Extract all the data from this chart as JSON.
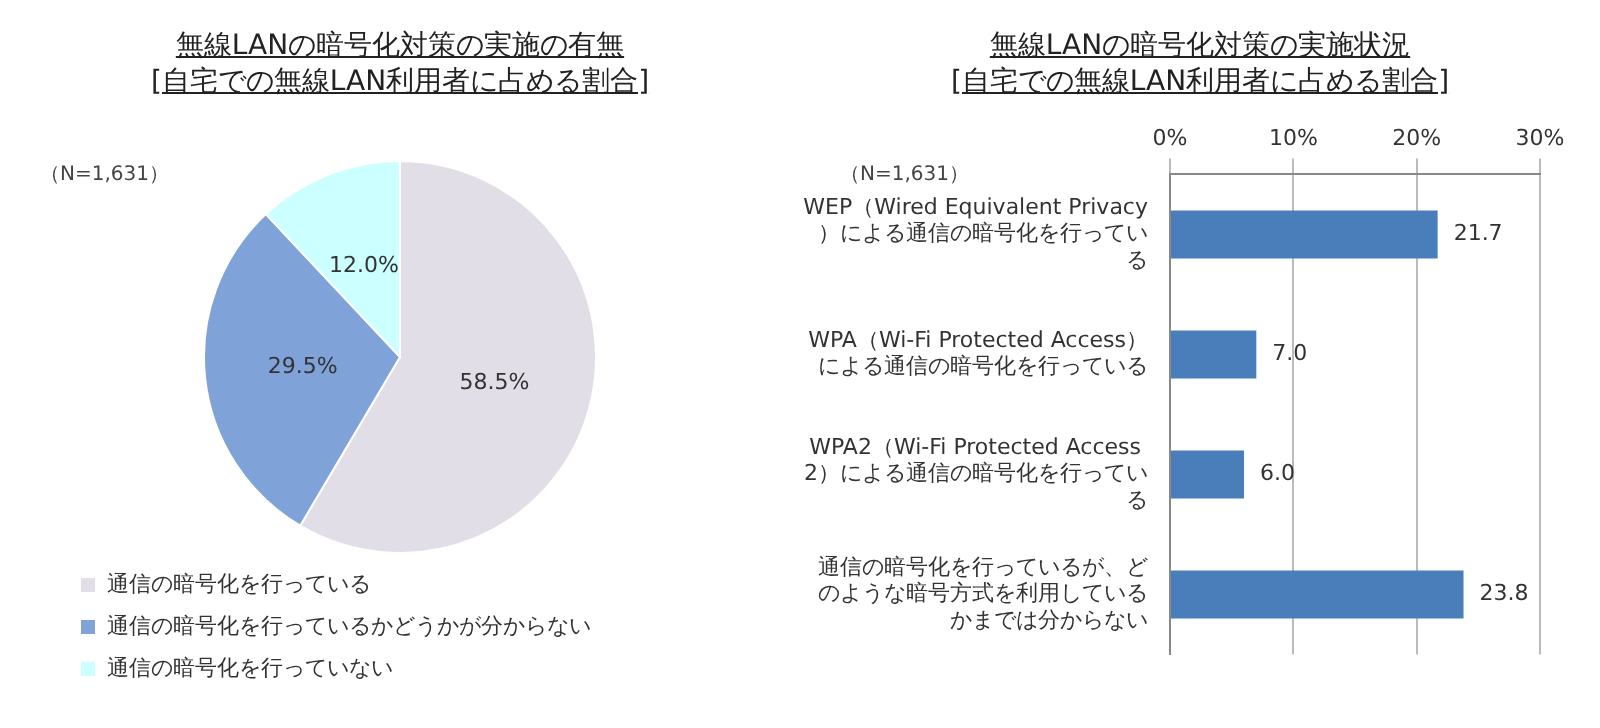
{
  "chart_data": [
    {
      "type": "pie",
      "title": "無線LANの暗号化対策の実施の有無",
      "subtitle": "[自宅での無線LAN利用者に占める割合]",
      "annotations": [
        "（N=1,631）"
      ],
      "categories": [
        "通信の暗号化を行っている",
        "通信の暗号化を行っているかどうかが分からない",
        "通信の暗号化を行っていない"
      ],
      "values": [
        58.5,
        29.5,
        12.0
      ],
      "colors": [
        "#e2dee8",
        "#7fa3d8",
        "#ccffff"
      ],
      "value_labels": [
        "58.5%",
        "29.5%",
        "12.0%"
      ],
      "legend": "bottom"
    },
    {
      "type": "bar",
      "orientation": "horizontal",
      "title": "無線LANの暗号化対策の実施状況",
      "subtitle": "[自宅での無線LAN利用者に占める割合]",
      "annotations": [
        "（N=1,631）"
      ],
      "categories": [
        "WEP（Wired Equivalent Privacy）による通信の暗号化を行っている",
        "WPA（Wi-Fi Protected Access）による通信の暗号化を行っている",
        "WPA2（Wi-Fi Protected Access 2）による通信の暗号化を行っている",
        "通信の暗号化を行っているが、どのような暗号方式を利用しているかまでは分からない"
      ],
      "values": [
        21.7,
        7.0,
        6.0,
        23.8
      ],
      "color": "#4a7ebb",
      "value_labels": [
        "21.7",
        "7.0",
        "6.0",
        "23.8"
      ],
      "xlim": [
        0,
        30
      ],
      "xticks": [
        {
          "value": 0,
          "label": "0%"
        },
        {
          "value": 10,
          "label": "10%"
        },
        {
          "value": 20,
          "label": "20%"
        },
        {
          "value": 30,
          "label": "30%"
        }
      ],
      "grid": "x"
    }
  ]
}
